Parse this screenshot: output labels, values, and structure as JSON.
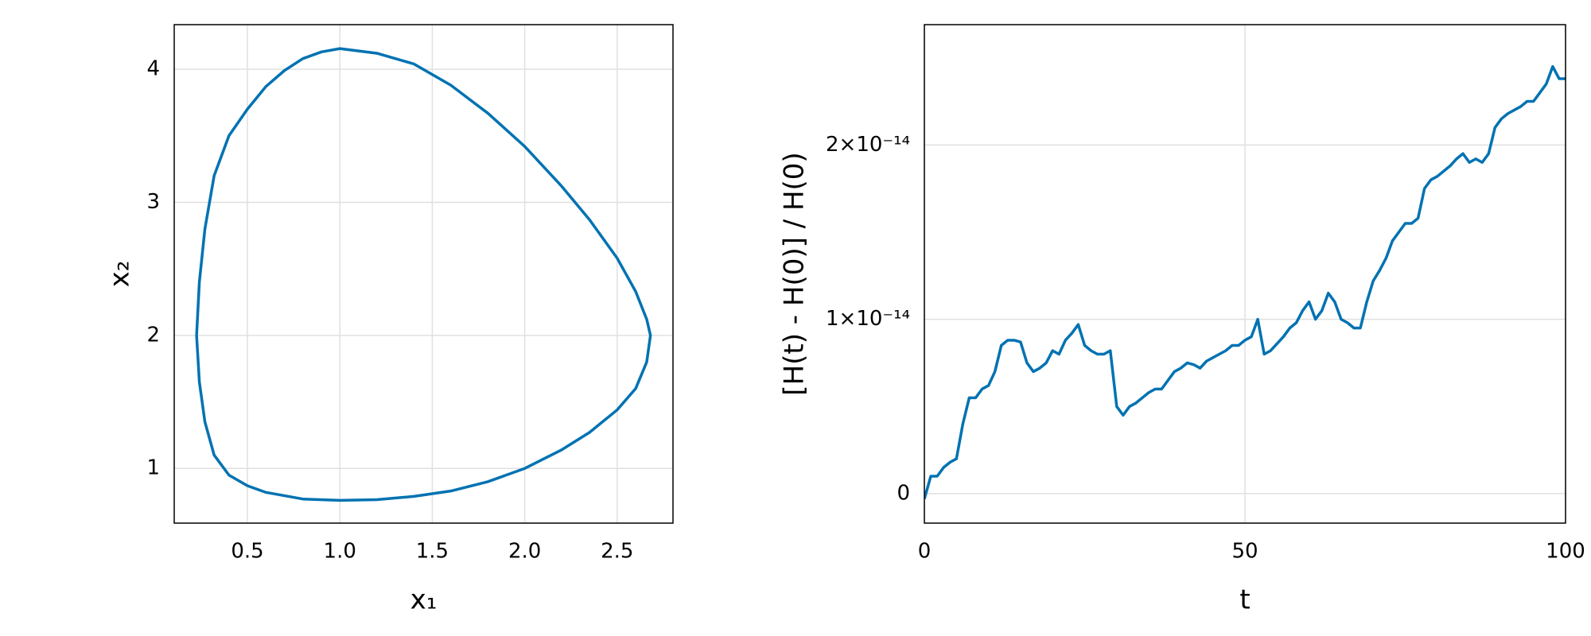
{
  "chart_data": [
    {
      "type": "line",
      "xlabel": "x₁",
      "ylabel": "x₂",
      "color": "#0072b2",
      "grid": true,
      "xlim": [
        0.104,
        2.802
      ],
      "ylim": [
        0.589,
        4.335
      ],
      "xticks": [
        0.5,
        {
          "value": 1,
          "label": "1.0"
        },
        1.5,
        {
          "value": 2,
          "label": "2.0"
        },
        2.5
      ],
      "yticks": [
        1,
        2,
        3,
        4
      ],
      "x": [
        0.225,
        0.24,
        0.27,
        0.32,
        0.4,
        0.5,
        0.6,
        0.7,
        0.8,
        0.9,
        1.0,
        1.2,
        1.4,
        1.6,
        1.8,
        2.0,
        2.2,
        2.35,
        2.5,
        2.6,
        2.66,
        2.68,
        2.66,
        2.6,
        2.5,
        2.35,
        2.2,
        2.0,
        1.8,
        1.6,
        1.4,
        1.2,
        1.0,
        0.8,
        0.6,
        0.5,
        0.4,
        0.32,
        0.27,
        0.24,
        0.225
      ],
      "values": [
        2.0,
        2.4,
        2.8,
        3.2,
        3.5,
        3.7,
        3.87,
        3.99,
        4.08,
        4.13,
        4.155,
        4.12,
        4.04,
        3.88,
        3.67,
        3.42,
        3.12,
        2.87,
        2.58,
        2.33,
        2.12,
        2.0,
        1.8,
        1.6,
        1.44,
        1.27,
        1.14,
        1.0,
        0.9,
        0.83,
        0.79,
        0.765,
        0.76,
        0.77,
        0.82,
        0.87,
        0.95,
        1.1,
        1.35,
        1.65,
        2.0
      ]
    },
    {
      "type": "line",
      "xlabel": "t",
      "ylabel": "[H(t) - H(0)] / H(0)",
      "color": "#0072b2",
      "grid": true,
      "xlim": [
        0,
        100
      ],
      "ylim": [
        -1.69e-15,
        2.69e-14
      ],
      "xticks": [
        0,
        50,
        100
      ],
      "yticks": [
        0,
        {
          "value": 1e-14,
          "label": "1×10⁻¹⁴"
        },
        {
          "value": 2e-14,
          "label": "2×10⁻¹⁴"
        }
      ],
      "x": [
        0,
        1,
        2,
        3,
        4,
        5,
        6,
        7,
        8,
        9,
        10,
        11,
        12,
        13,
        14,
        15,
        16,
        17,
        18,
        19,
        20,
        21,
        22,
        23,
        24,
        25,
        26,
        27,
        28,
        29,
        30,
        31,
        32,
        33,
        34,
        35,
        36,
        37,
        38,
        39,
        40,
        41,
        42,
        43,
        44,
        45,
        46,
        47,
        48,
        49,
        50,
        51,
        52,
        53,
        54,
        55,
        56,
        57,
        58,
        59,
        60,
        61,
        62,
        63,
        64,
        65,
        66,
        67,
        68,
        69,
        70,
        71,
        72,
        73,
        74,
        75,
        76,
        77,
        78,
        79,
        80,
        81,
        82,
        83,
        84,
        85,
        86,
        87,
        88,
        89,
        90,
        91,
        92,
        93,
        94,
        95,
        96,
        97,
        98,
        99,
        100
      ],
      "values": [
        -3e-16,
        1e-15,
        1e-15,
        1.5e-15,
        1.8e-15,
        2e-15,
        4e-15,
        5.5e-15,
        5.5e-15,
        6e-15,
        6.2e-15,
        7e-15,
        8.5e-15,
        8.8e-15,
        8.8e-15,
        8.7e-15,
        7.5e-15,
        7e-15,
        7.2e-15,
        7.5e-15,
        8.2e-15,
        8e-15,
        8.8e-15,
        9.2e-15,
        9.7e-15,
        8.5e-15,
        8.2e-15,
        8e-15,
        8e-15,
        8.2e-15,
        5e-15,
        4.5e-15,
        5e-15,
        5.2e-15,
        5.5e-15,
        5.8e-15,
        6e-15,
        6e-15,
        6.5e-15,
        7e-15,
        7.2e-15,
        7.5e-15,
        7.4e-15,
        7.2e-15,
        7.6e-15,
        7.8e-15,
        8e-15,
        8.2e-15,
        8.5e-15,
        8.5e-15,
        8.8e-15,
        9e-15,
        1e-14,
        8e-15,
        8.2e-15,
        8.6e-15,
        9e-15,
        9.5e-15,
        9.8e-15,
        1.05e-14,
        1.1e-14,
        1e-14,
        1.05e-14,
        1.15e-14,
        1.1e-14,
        1e-14,
        9.8e-15,
        9.5e-15,
        9.5e-15,
        1.1e-14,
        1.22e-14,
        1.28e-14,
        1.35e-14,
        1.45e-14,
        1.5e-14,
        1.55e-14,
        1.55e-14,
        1.58e-14,
        1.75e-14,
        1.8e-14,
        1.82e-14,
        1.85e-14,
        1.88e-14,
        1.92e-14,
        1.95e-14,
        1.9e-14,
        1.92e-14,
        1.9e-14,
        1.95e-14,
        2.1e-14,
        2.15e-14,
        2.18e-14,
        2.2e-14,
        2.22e-14,
        2.25e-14,
        2.25e-14,
        2.3e-14,
        2.35e-14,
        2.45e-14,
        2.38e-14,
        2.38e-14
      ]
    }
  ]
}
